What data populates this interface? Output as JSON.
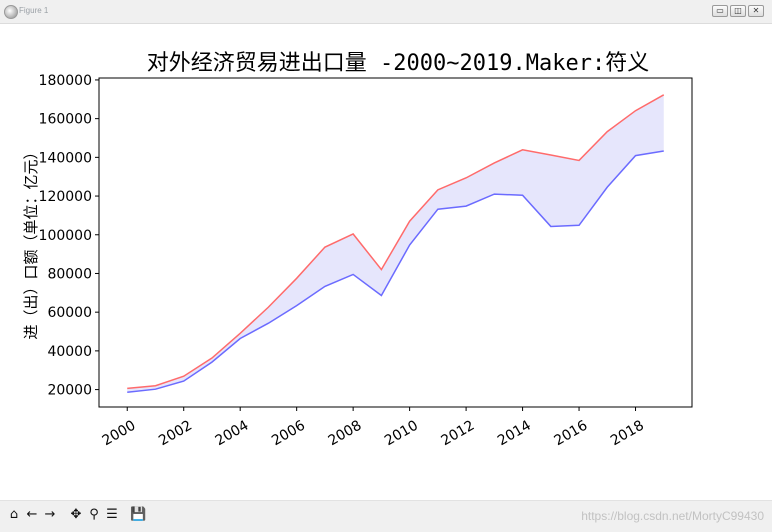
{
  "window": {
    "title": "Figure 1",
    "controls": {
      "minimize_glyph": "▭",
      "restore_glyph": "◫",
      "close_glyph": "✕"
    }
  },
  "toolbar": {
    "icons": [
      "home-icon",
      "back-arrow-icon",
      "forward-arrow-icon",
      "pan-icon",
      "zoom-icon",
      "configure-subplots-icon",
      "save-icon"
    ],
    "glyphs": {
      "home": "⌂",
      "back": "←",
      "forward": "→",
      "pan": "✥",
      "zoom": "⚲",
      "config": "☰",
      "save": "💾"
    }
  },
  "watermark": "https://blog.csdn.net/MortyC99430",
  "chart_data": {
    "type": "area",
    "title": "对外经济贸易进出口量 -2000~2019.Maker:符义",
    "xlabel": "",
    "ylabel": "进（出）口额（单位：亿元）",
    "x": [
      2000,
      2001,
      2002,
      2003,
      2004,
      2005,
      2006,
      2007,
      2008,
      2009,
      2010,
      2011,
      2012,
      2013,
      2014,
      2015,
      2016,
      2017,
      2018,
      2019
    ],
    "xticks": [
      2000,
      2002,
      2004,
      2006,
      2008,
      2010,
      2012,
      2014,
      2016,
      2018
    ],
    "xtick_labels": [
      "2000",
      "2002",
      "2004",
      "2006",
      "2008",
      "2010",
      "2012",
      "2014",
      "2016",
      "2018"
    ],
    "yticks": [
      20000,
      40000,
      60000,
      80000,
      100000,
      120000,
      140000,
      160000,
      180000
    ],
    "ytick_labels": [
      "20000",
      "40000",
      "60000",
      "80000",
      "100000",
      "120000",
      "140000",
      "160000",
      "180000"
    ],
    "xlim": [
      1999.0,
      2020.0
    ],
    "ylim": [
      11000,
      181000
    ],
    "series": [
      {
        "color": "#ff6b6b",
        "values": [
          20600,
          22000,
          26900,
          36300,
          49100,
          62600,
          77500,
          93600,
          100400,
          82000,
          107000,
          123200,
          129400,
          137100,
          143900,
          141200,
          138400,
          153300,
          164100,
          172300
        ]
      },
      {
        "color": "#6b6bff",
        "values": [
          18600,
          20200,
          24400,
          34200,
          46400,
          54300,
          63400,
          73300,
          79500,
          68600,
          94700,
          113200,
          114800,
          121000,
          120400,
          104300,
          104900,
          124600,
          140900,
          143300
        ]
      }
    ],
    "fill_between": {
      "color": "#e6e6fc"
    },
    "grid": false,
    "legend": "none"
  }
}
